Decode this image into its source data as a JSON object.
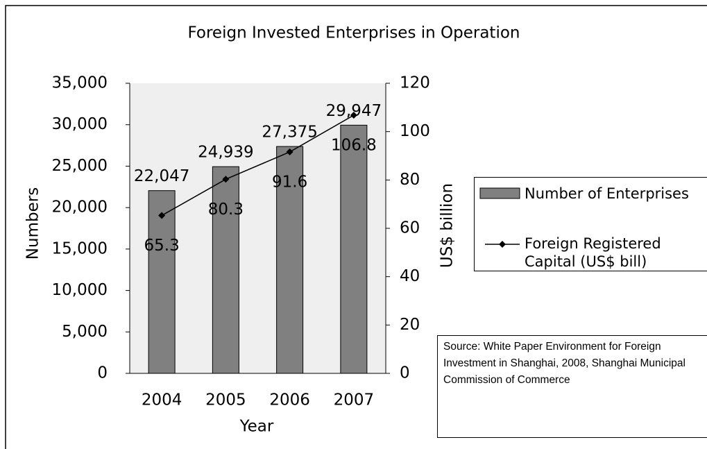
{
  "chart_data": {
    "type": "bar",
    "title": "Foreign Invested Enterprises in Operation",
    "xlabel": "Year",
    "ylabel": "Numbers",
    "y2label": "US$ billion",
    "categories": [
      "2004",
      "2005",
      "2006",
      "2007"
    ],
    "series": [
      {
        "name": "Number of Enterprises",
        "type": "bar",
        "color": "#808080",
        "values": [
          22047,
          24939,
          27375,
          29947
        ],
        "value_labels": [
          "22,047",
          "24,939",
          "27,375",
          "29,947"
        ]
      },
      {
        "name": "Foreign Registered Capital (US$ bill)",
        "type": "line",
        "axis": "y2",
        "color": "#000000",
        "values": [
          65.3,
          80.3,
          91.6,
          106.8
        ]
      }
    ],
    "ylim": [
      0,
      35000
    ],
    "yticks": [
      0,
      {
        "value": 5000,
        "label": "5,000"
      },
      {
        "value": 10000,
        "label": "10,000"
      },
      {
        "value": 15000,
        "label": "15,000"
      },
      {
        "value": 20000,
        "label": "20,000"
      },
      {
        "value": 25000,
        "label": "25,000"
      },
      {
        "value": 30000,
        "label": "30,000"
      },
      {
        "value": 35000,
        "label": "35,000"
      }
    ],
    "y2lim": [
      0,
      120
    ],
    "y2ticks": [
      0,
      20,
      40,
      60,
      80,
      100,
      120
    ],
    "legend": "right",
    "note": "Source: White Paper Environment for Foreign Investment in Shanghai, 2008, Shanghai Municipal Commission of Commerce"
  }
}
